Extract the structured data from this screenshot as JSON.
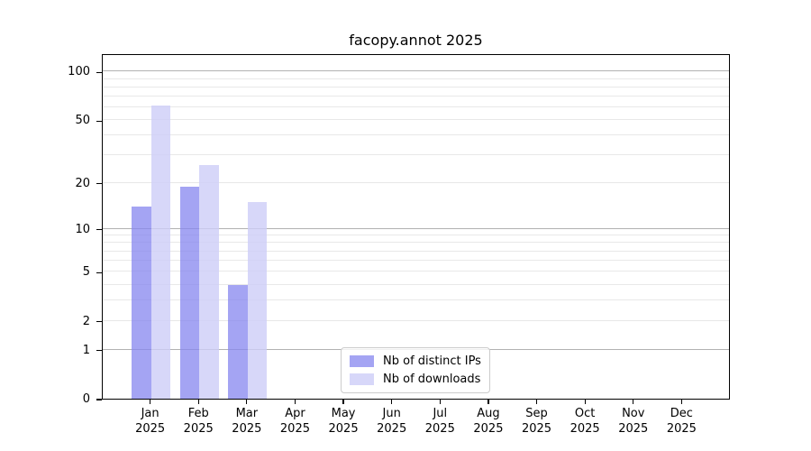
{
  "chart_data": {
    "type": "bar",
    "title": "facopy.annot 2025",
    "year_label": "2025",
    "categories": [
      "Jan",
      "Feb",
      "Mar",
      "Apr",
      "May",
      "Jun",
      "Jul",
      "Aug",
      "Sep",
      "Oct",
      "Nov",
      "Dec"
    ],
    "series": [
      {
        "name": "Nb of distinct IPs",
        "key": "ips",
        "color": "rgba(134,134,239,0.75)",
        "values": [
          14,
          19,
          4,
          0,
          0,
          0,
          0,
          0,
          0,
          0,
          0,
          0
        ]
      },
      {
        "name": "Nb of downloads",
        "key": "downloads",
        "color": "rgba(205,205,247,0.8)",
        "values": [
          62,
          26,
          15,
          0,
          0,
          0,
          0,
          0,
          0,
          0,
          0,
          0
        ]
      }
    ],
    "xlabel": "",
    "ylabel": "",
    "yscale": "log1p",
    "ylim": [
      0,
      130
    ],
    "yticks": [
      0,
      1,
      2,
      5,
      10,
      20,
      50,
      100
    ],
    "major_gridlines": [
      1,
      10,
      100
    ],
    "minor_gridlines": [
      2,
      3,
      4,
      5,
      6,
      7,
      8,
      9,
      20,
      30,
      40,
      50,
      60,
      70,
      80,
      90
    ],
    "grid": true,
    "legend_position": "lower center",
    "colors": {
      "major_grid": "#b2b2b2",
      "minor_grid": "#e8e8e8",
      "spine": "#000000",
      "legend_border": "#cccccc",
      "background": "#ffffff"
    }
  }
}
